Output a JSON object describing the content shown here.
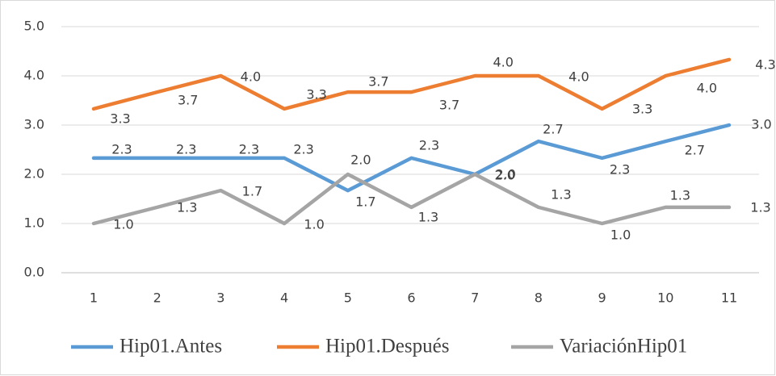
{
  "chart_data": {
    "type": "line",
    "categories": [
      "1",
      "2",
      "3",
      "4",
      "5",
      "6",
      "7",
      "8",
      "9",
      "10",
      "11"
    ],
    "series": [
      {
        "name": "Hip01.Antes",
        "color": "#5b9bd5",
        "values": [
          2.33,
          2.33,
          2.33,
          2.33,
          1.67,
          2.33,
          2.0,
          2.67,
          2.33,
          2.67,
          3.0
        ],
        "value_labels": [
          "2.3",
          "2.3",
          "2.3",
          "2.3",
          "1.7",
          "2.3",
          "2.0",
          "2.7",
          "2.3",
          "2.7",
          "3.0"
        ]
      },
      {
        "name": "Hip01.Después",
        "color": "#ed7d31",
        "values": [
          3.33,
          3.67,
          4.0,
          3.33,
          3.67,
          3.67,
          4.0,
          4.0,
          3.33,
          4.0,
          4.33
        ],
        "value_labels": [
          "3.3",
          "3.7",
          "4.0",
          "3.3",
          "3.7",
          "3.7",
          "4.0",
          "4.0",
          "3.3",
          "4.0",
          "4.3"
        ]
      },
      {
        "name": "VariaciónHip01",
        "color": "#a5a5a5",
        "values": [
          1.0,
          1.33,
          1.67,
          1.0,
          2.0,
          1.33,
          2.0,
          1.33,
          1.0,
          1.33,
          1.33
        ],
        "value_labels": [
          "1.0",
          "1.3",
          "1.7",
          "1.0",
          "2.0",
          "1.3",
          "2.0",
          "1.3",
          "1.0",
          "1.3",
          "1.3"
        ]
      }
    ],
    "ylim": [
      0,
      5
    ],
    "yticks": [
      {
        "value": 0,
        "label": "0.0"
      },
      {
        "value": 1,
        "label": "1.0"
      },
      {
        "value": 2,
        "label": "2.0"
      },
      {
        "value": 3,
        "label": "3.0"
      },
      {
        "value": 4,
        "label": "4.0"
      },
      {
        "value": 5,
        "label": "5.0"
      }
    ],
    "grid": true,
    "legend": "bottom"
  }
}
